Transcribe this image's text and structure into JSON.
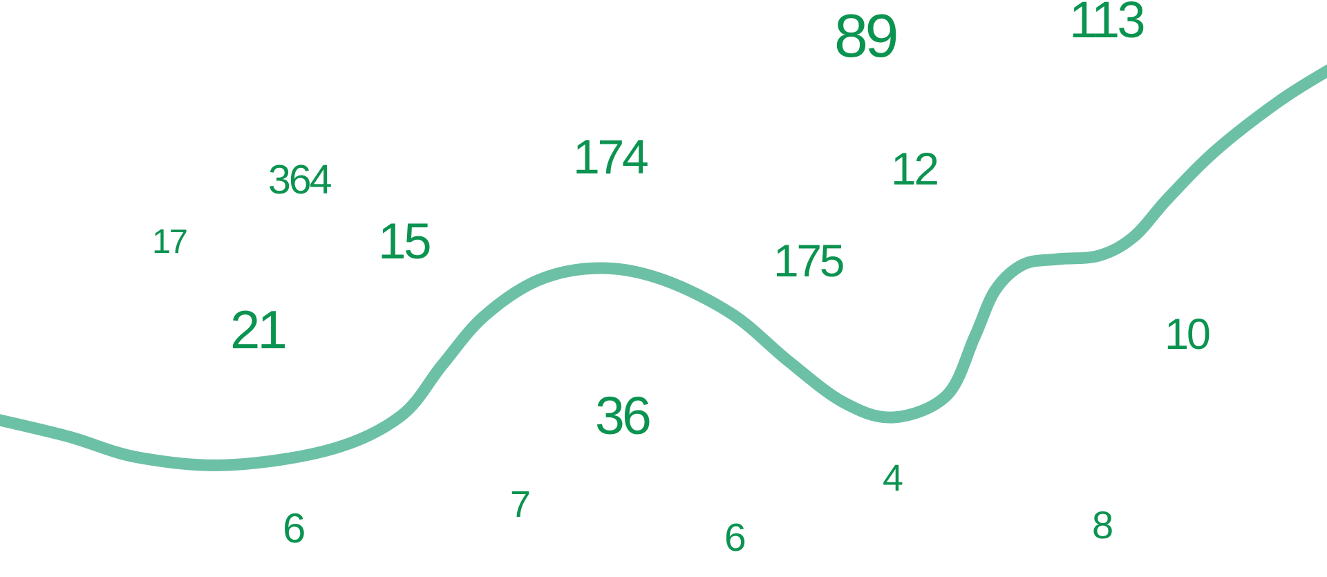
{
  "colors": {
    "number_text": "#0b9350",
    "curve": "#6cc0a5",
    "background": "#ffffff"
  },
  "numbers": [
    "364",
    "17",
    "21",
    "6",
    "15",
    "174",
    "36",
    "7",
    "89",
    "12",
    "175",
    "4",
    "6",
    "113",
    "10",
    "8"
  ]
}
